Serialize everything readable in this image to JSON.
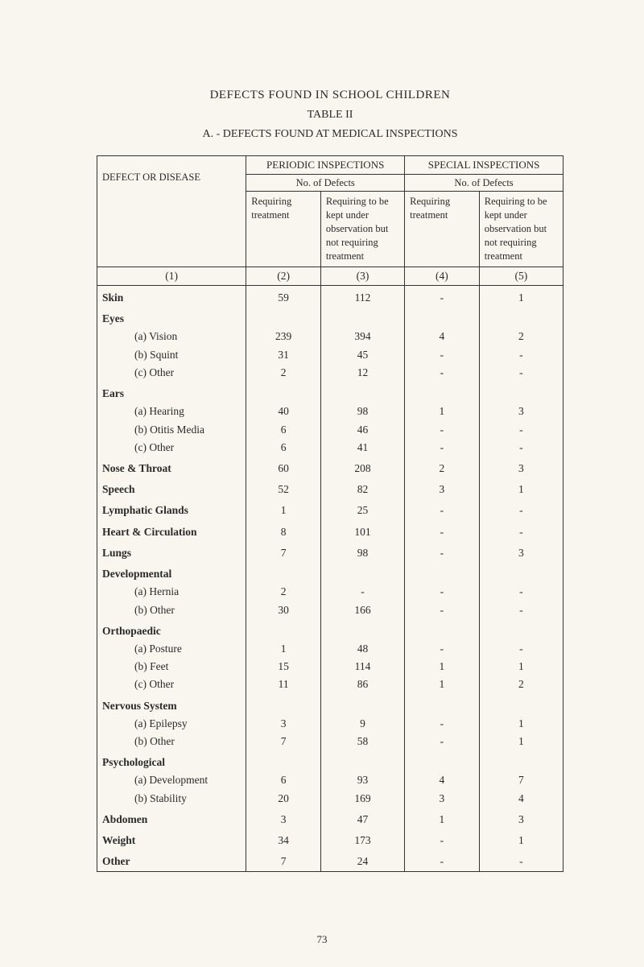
{
  "titles": {
    "main": "DEFECTS FOUND IN SCHOOL CHILDREN",
    "sub": "TABLE II",
    "section": "A. - DEFECTS FOUND AT MEDICAL INSPECTIONS"
  },
  "headers": {
    "defect_or_disease": "DEFECT OR DISEASE",
    "periodic": "PERIODIC INSPECTIONS",
    "special": "SPECIAL INSPECTIONS",
    "no_of_defects": "No. of Defects",
    "req_treatment": "Requiring treatment",
    "req_obs": "Requiring to be kept under observation but not requiring treatment"
  },
  "colnums": {
    "c1": "(1)",
    "c2": "(2)",
    "c3": "(3)",
    "c4": "(4)",
    "c5": "(5)"
  },
  "rows": [
    {
      "label": "Skin",
      "bold": true,
      "v": [
        "59",
        "112",
        "-",
        "1"
      ]
    },
    {
      "label": "Eyes",
      "bold": true,
      "v": [
        "",
        "",
        "",
        ""
      ]
    },
    {
      "label": "(a)  Vision",
      "indent": 1,
      "v": [
        "239",
        "394",
        "4",
        "2"
      ]
    },
    {
      "label": "(b)  Squint",
      "indent": 1,
      "v": [
        "31",
        "45",
        "-",
        "-"
      ]
    },
    {
      "label": "(c)  Other",
      "indent": 1,
      "v": [
        "2",
        "12",
        "-",
        "-"
      ]
    },
    {
      "label": "Ears",
      "bold": true,
      "v": [
        "",
        "",
        "",
        ""
      ]
    },
    {
      "label": "(a)  Hearing",
      "indent": 1,
      "v": [
        "40",
        "98",
        "1",
        "3"
      ]
    },
    {
      "label": "(b)  Otitis Media",
      "indent": 1,
      "v": [
        "6",
        "46",
        "-",
        "-"
      ]
    },
    {
      "label": "(c)  Other",
      "indent": 1,
      "v": [
        "6",
        "41",
        "-",
        "-"
      ]
    },
    {
      "label": "Nose & Throat",
      "bold": true,
      "v": [
        "60",
        "208",
        "2",
        "3"
      ]
    },
    {
      "label": "Speech",
      "bold": true,
      "v": [
        "52",
        "82",
        "3",
        "1"
      ]
    },
    {
      "label": "Lymphatic Glands",
      "bold": true,
      "v": [
        "1",
        "25",
        "-",
        "-"
      ]
    },
    {
      "label": "Heart & Circulation",
      "bold": true,
      "v": [
        "8",
        "101",
        "-",
        "-"
      ]
    },
    {
      "label": "Lungs",
      "bold": true,
      "v": [
        "7",
        "98",
        "-",
        "3"
      ]
    },
    {
      "label": "Developmental",
      "bold": true,
      "v": [
        "",
        "",
        "",
        ""
      ]
    },
    {
      "label": "(a)  Hernia",
      "indent": 1,
      "v": [
        "2",
        "-",
        "-",
        "-"
      ]
    },
    {
      "label": "(b)  Other",
      "indent": 1,
      "v": [
        "30",
        "166",
        "-",
        "-"
      ]
    },
    {
      "label": "Orthopaedic",
      "bold": true,
      "v": [
        "",
        "",
        "",
        ""
      ]
    },
    {
      "label": "(a)  Posture",
      "indent": 1,
      "v": [
        "1",
        "48",
        "-",
        "-"
      ]
    },
    {
      "label": "(b)  Feet",
      "indent": 1,
      "v": [
        "15",
        "114",
        "1",
        "1"
      ]
    },
    {
      "label": "(c)  Other",
      "indent": 1,
      "v": [
        "11",
        "86",
        "1",
        "2"
      ]
    },
    {
      "label": "Nervous System",
      "bold": true,
      "v": [
        "",
        "",
        "",
        ""
      ]
    },
    {
      "label": "(a)  Epilepsy",
      "indent": 1,
      "v": [
        "3",
        "9",
        "-",
        "1"
      ]
    },
    {
      "label": "(b)  Other",
      "indent": 1,
      "v": [
        "7",
        "58",
        "-",
        "1"
      ]
    },
    {
      "label": "Psychological",
      "bold": true,
      "v": [
        "",
        "",
        "",
        ""
      ]
    },
    {
      "label": "(a)  Development",
      "indent": 1,
      "v": [
        "6",
        "93",
        "4",
        "7"
      ]
    },
    {
      "label": "(b)  Stability",
      "indent": 1,
      "v": [
        "20",
        "169",
        "3",
        "4"
      ]
    },
    {
      "label": "Abdomen",
      "bold": true,
      "v": [
        "3",
        "47",
        "1",
        "3"
      ]
    },
    {
      "label": "Weight",
      "bold": true,
      "v": [
        "34",
        "173",
        "-",
        "1"
      ]
    },
    {
      "label": "Other",
      "bold": true,
      "v": [
        "7",
        "24",
        "-",
        "-"
      ]
    }
  ],
  "page_number": "73",
  "style": {
    "page_bg": "#f8f6ee",
    "rule_color": "#333333",
    "font_family": "Times New Roman"
  }
}
